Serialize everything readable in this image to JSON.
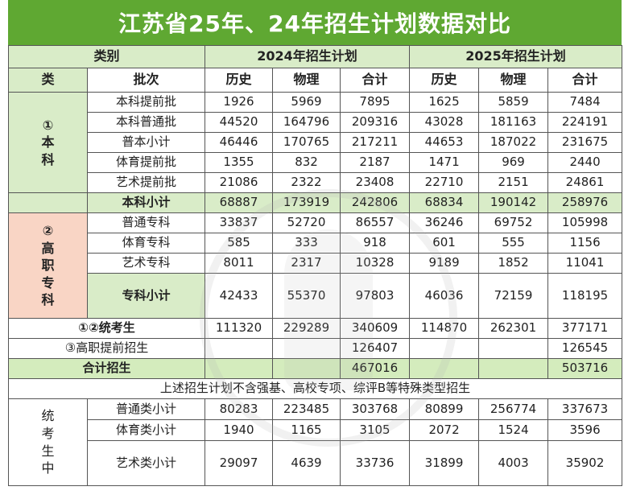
{
  "title": "江苏省25年、24年招生计划数据对比",
  "header": {
    "category": "类别",
    "y2024": "2024年招生计划",
    "y2025": "2025年招生计划",
    "lei": "类",
    "pici": "批次",
    "hist": "历史",
    "phys": "物理",
    "total": "合计"
  },
  "benke": {
    "label": [
      "①",
      "本",
      "科"
    ],
    "rows": [
      {
        "name": "本科提前批",
        "v": [
          "1926",
          "5969",
          "7895",
          "1625",
          "5859",
          "7484"
        ]
      },
      {
        "name": "本科普通批",
        "v": [
          "44520",
          "164796",
          "209316",
          "43028",
          "181163",
          "224191"
        ]
      },
      {
        "name": "普本小计",
        "v": [
          "46446",
          "170765",
          "217211",
          "44653",
          "187022",
          "231675"
        ]
      },
      {
        "name": "体育提前批",
        "v": [
          "1355",
          "832",
          "2187",
          "1471",
          "969",
          "2440"
        ]
      },
      {
        "name": "艺术提前批",
        "v": [
          "21086",
          "2322",
          "23408",
          "22710",
          "2151",
          "24861"
        ]
      },
      {
        "name": "本科小计",
        "v": [
          "68887",
          "173919",
          "242806",
          "68834",
          "190142",
          "258976"
        ]
      }
    ]
  },
  "gaozhi": {
    "label": [
      "②",
      "高",
      "职",
      "专",
      "科"
    ],
    "rows": [
      {
        "name": "普通专科",
        "v": [
          "33837",
          "52720",
          "86557",
          "36246",
          "69752",
          "105998"
        ]
      },
      {
        "name": "体育专科",
        "v": [
          "585",
          "333",
          "918",
          "601",
          "555",
          "1156"
        ]
      },
      {
        "name": "艺术专科",
        "v": [
          "8011",
          "2317",
          "10328",
          "9189",
          "1852",
          "11041"
        ]
      },
      {
        "name": "专科小计",
        "v": [
          "42433",
          "55370",
          "97803",
          "46036",
          "72159",
          "118195"
        ]
      }
    ]
  },
  "summary": {
    "tongkao": {
      "name": "①②统考生",
      "v": [
        "111320",
        "229289",
        "340609",
        "114870",
        "262301",
        "377171"
      ]
    },
    "tiqian": {
      "name": "③高职提前招生",
      "v24": "126407",
      "v25": "126545"
    },
    "heji": {
      "name": "合计招生",
      "v24": "467016",
      "v25": "503716"
    }
  },
  "note": "上述招生计划不含强基、高校专项、综评B等特殊类型招生",
  "tongkaosheng": {
    "label": [
      "统",
      "考",
      "生",
      "中"
    ],
    "rows": [
      {
        "name": "普通类小计",
        "v": [
          "80283",
          "223485",
          "303768",
          "80899",
          "256774",
          "337673"
        ]
      },
      {
        "name": "体育类小计",
        "v": [
          "1940",
          "1165",
          "3105",
          "2072",
          "1524",
          "3596"
        ]
      },
      {
        "name": "艺术类小计",
        "v": [
          "29097",
          "4639",
          "33736",
          "31899",
          "4003",
          "35902"
        ]
      }
    ]
  },
  "colors": {
    "title_bg": "#5fa832",
    "green_cell": "#d9ecc8",
    "pink_cell": "#f9d5c5"
  }
}
